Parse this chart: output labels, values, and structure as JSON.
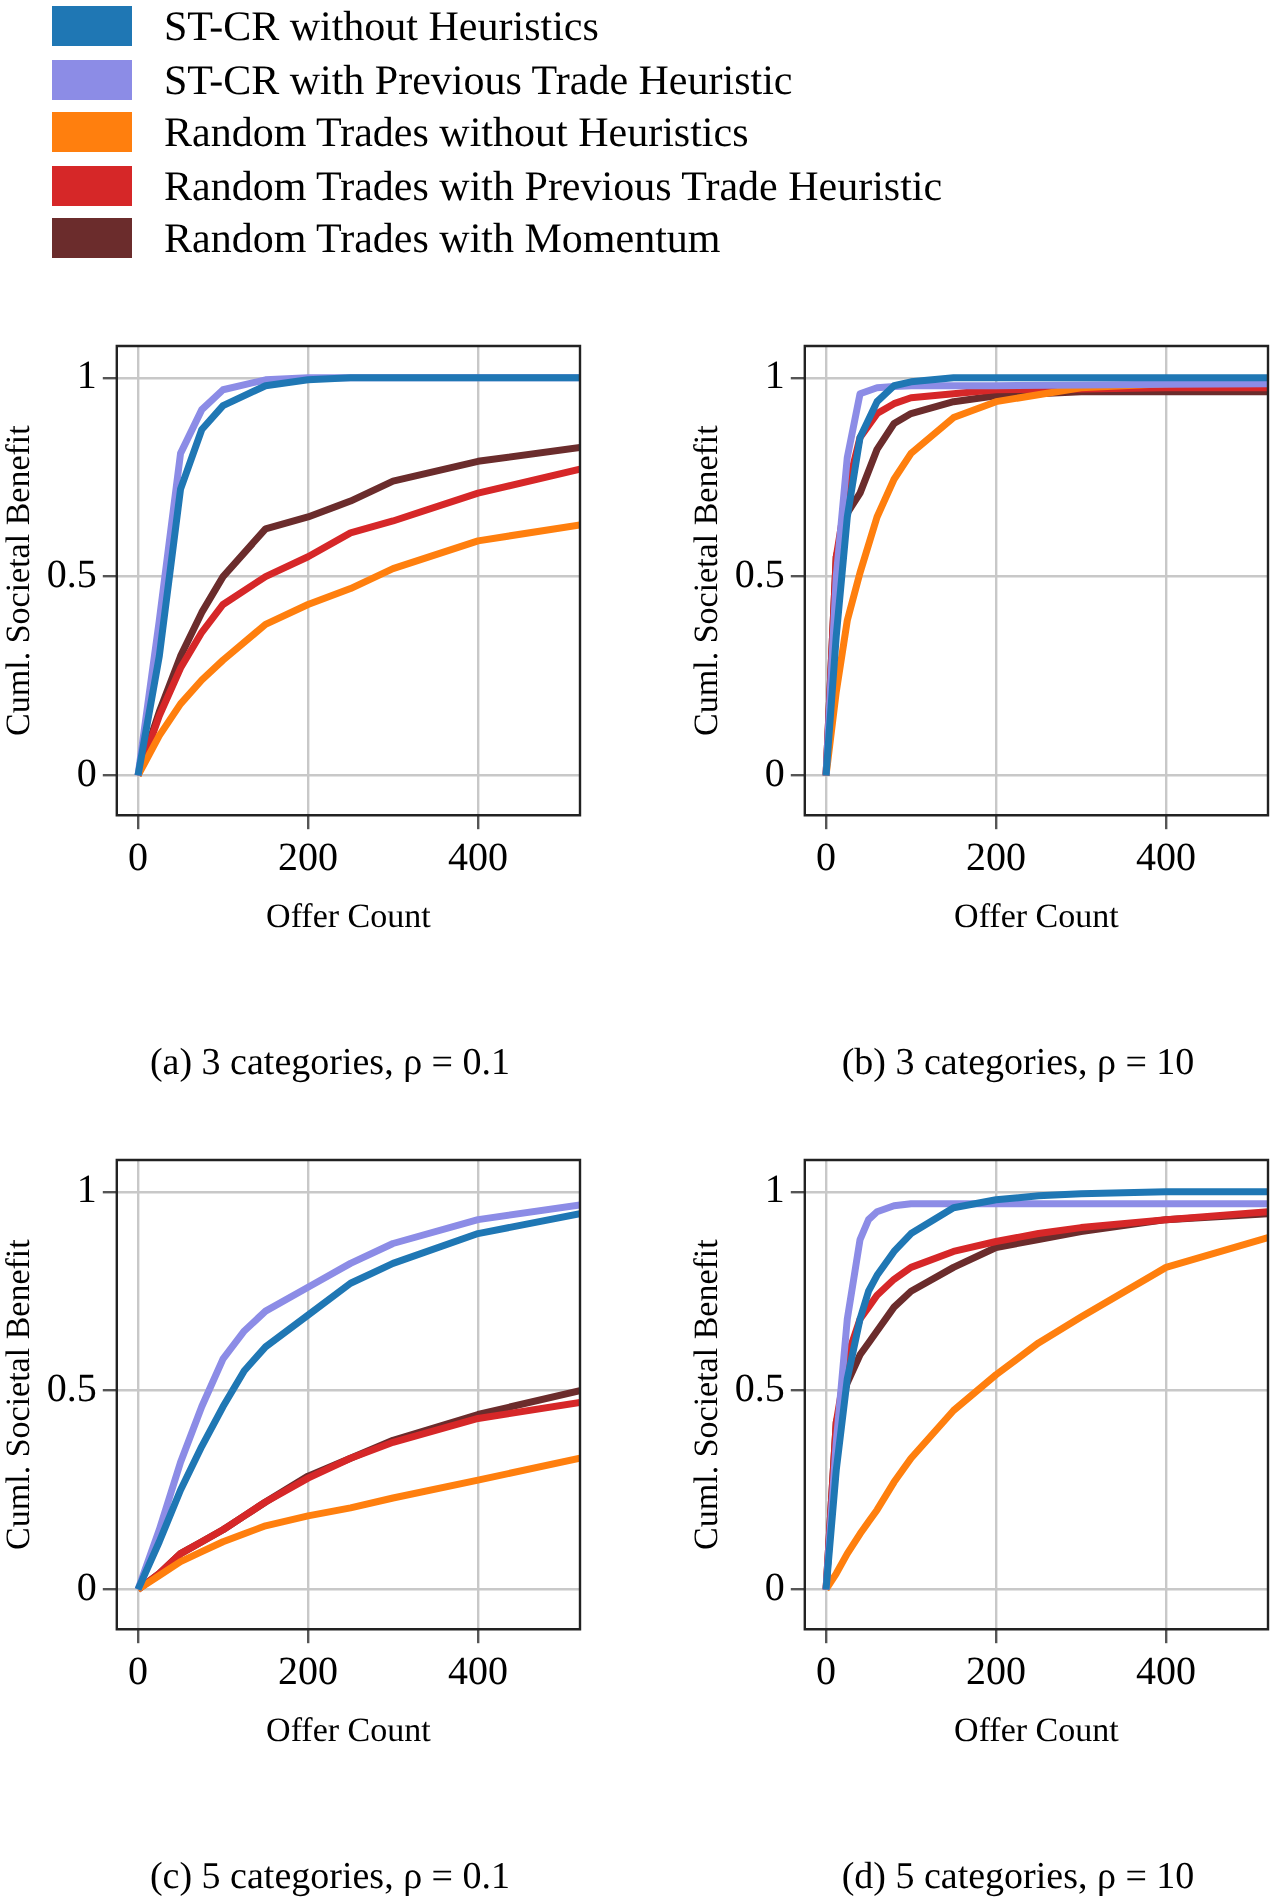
{
  "chart_data": [
    {
      "type": "line",
      "xlabel": "Offer Count",
      "ylabel": "Cuml. Societal Benefit",
      "annotations": [
        "(a) 3 categories, ρ = 0.1"
      ],
      "legend": "top",
      "grid": true,
      "xlim": [
        -25,
        520
      ],
      "ylim": [
        -0.1,
        1.08
      ],
      "xticks": [
        0,
        200,
        400
      ],
      "yticks": [
        0,
        0.5,
        1
      ],
      "x": [
        0,
        25,
        50,
        75,
        100,
        150,
        200,
        250,
        300,
        400,
        520
      ],
      "series": [
        {
          "name": "ST-CR without Heuristics",
          "color": "#1f77b4",
          "values": [
            0,
            0.3,
            0.72,
            0.87,
            0.93,
            0.98,
            0.995,
            1,
            1,
            1,
            1
          ]
        },
        {
          "name": "ST-CR with Previous Trade Heuristic",
          "color": "#8c8ce6",
          "values": [
            0,
            0.39,
            0.81,
            0.92,
            0.97,
            0.995,
            1,
            1,
            1,
            1,
            1
          ]
        },
        {
          "name": "Random Trades without Heuristics",
          "color": "#ff7f0e",
          "values": [
            0,
            0.1,
            0.18,
            0.24,
            0.29,
            0.38,
            0.43,
            0.47,
            0.52,
            0.59,
            0.63
          ]
        },
        {
          "name": "Random Trades with Previous Trade Heuristic",
          "color": "#d62728",
          "values": [
            0,
            0.15,
            0.27,
            0.36,
            0.43,
            0.5,
            0.55,
            0.61,
            0.64,
            0.71,
            0.77
          ]
        },
        {
          "name": "Random Trades with Momentum",
          "color": "#6b2c2c",
          "values": [
            0,
            0.16,
            0.3,
            0.41,
            0.5,
            0.62,
            0.65,
            0.69,
            0.74,
            0.79,
            0.825
          ]
        }
      ]
    },
    {
      "type": "line",
      "xlabel": "Offer Count",
      "ylabel": "Cuml. Societal Benefit",
      "annotations": [
        "(b) 3 categories, ρ = 10"
      ],
      "grid": true,
      "xlim": [
        -25,
        520
      ],
      "ylim": [
        -0.1,
        1.08
      ],
      "xticks": [
        0,
        200,
        400
      ],
      "yticks": [
        0,
        0.5,
        1
      ],
      "x": [
        0,
        12,
        25,
        40,
        60,
        80,
        100,
        150,
        200,
        300,
        400,
        520
      ],
      "series": [
        {
          "color": "#1f77b4",
          "values": [
            0,
            0.35,
            0.65,
            0.85,
            0.94,
            0.98,
            0.99,
            1,
            1,
            1,
            1,
            1
          ]
        },
        {
          "color": "#8c8ce6",
          "values": [
            0,
            0.5,
            0.8,
            0.96,
            0.975,
            0.978,
            0.98,
            0.98,
            0.98,
            0.982,
            0.984,
            0.985
          ]
        },
        {
          "color": "#ff7f0e",
          "values": [
            0,
            0.21,
            0.39,
            0.51,
            0.65,
            0.745,
            0.81,
            0.9,
            0.94,
            0.975,
            0.985,
            0.99
          ]
        },
        {
          "color": "#d62728",
          "values": [
            0,
            0.55,
            0.72,
            0.85,
            0.91,
            0.935,
            0.95,
            0.96,
            0.97,
            0.972,
            0.975,
            0.975
          ]
        },
        {
          "color": "#6b2c2c",
          "values": [
            0,
            0.55,
            0.66,
            0.71,
            0.82,
            0.885,
            0.91,
            0.94,
            0.955,
            0.965,
            0.965,
            0.965
          ]
        }
      ]
    },
    {
      "type": "line",
      "xlabel": "Offer Count",
      "ylabel": "Cuml. Societal Benefit",
      "annotations": [
        "(c) 5 categories, ρ = 0.1"
      ],
      "grid": true,
      "xlim": [
        -25,
        520
      ],
      "ylim": [
        -0.1,
        1.08
      ],
      "xticks": [
        0,
        200,
        400
      ],
      "yticks": [
        0,
        0.5,
        1
      ],
      "x": [
        0,
        25,
        50,
        75,
        100,
        125,
        150,
        200,
        250,
        300,
        400,
        520
      ],
      "series": [
        {
          "color": "#1f77b4",
          "values": [
            0,
            0.12,
            0.25,
            0.36,
            0.46,
            0.55,
            0.61,
            0.69,
            0.77,
            0.82,
            0.895,
            0.945
          ]
        },
        {
          "color": "#8c8ce6",
          "values": [
            0,
            0.15,
            0.32,
            0.46,
            0.58,
            0.65,
            0.7,
            0.76,
            0.82,
            0.87,
            0.93,
            0.967
          ]
        },
        {
          "color": "#ff7f0e",
          "values": [
            0,
            0.035,
            0.07,
            0.095,
            0.12,
            0.14,
            0.16,
            0.185,
            0.205,
            0.23,
            0.275,
            0.33
          ]
        },
        {
          "color": "#d62728",
          "values": [
            0,
            0.04,
            0.09,
            0.12,
            0.15,
            0.185,
            0.22,
            0.28,
            0.33,
            0.37,
            0.43,
            0.47
          ]
        },
        {
          "color": "#6b2c2c",
          "values": [
            0,
            0.04,
            0.09,
            0.12,
            0.15,
            0.185,
            0.22,
            0.285,
            0.33,
            0.375,
            0.44,
            0.5
          ]
        }
      ]
    },
    {
      "type": "line",
      "xlabel": "Offer Count",
      "ylabel": "Cuml. Societal Benefit",
      "annotations": [
        "(d) 5 categories, ρ = 10"
      ],
      "grid": true,
      "xlim": [
        -25,
        520
      ],
      "ylim": [
        -0.1,
        1.08
      ],
      "xticks": [
        0,
        200,
        400
      ],
      "yticks": [
        0,
        0.5,
        1
      ],
      "x": [
        0,
        12,
        25,
        40,
        50,
        60,
        80,
        100,
        150,
        200,
        250,
        300,
        400,
        520
      ],
      "series": [
        {
          "color": "#1f77b4",
          "values": [
            0,
            0.3,
            0.53,
            0.68,
            0.75,
            0.79,
            0.85,
            0.895,
            0.96,
            0.98,
            0.99,
            0.995,
            1,
            1
          ]
        },
        {
          "color": "#8c8ce6",
          "values": [
            0,
            0.37,
            0.68,
            0.88,
            0.93,
            0.95,
            0.965,
            0.97,
            0.97,
            0.97,
            0.97,
            0.97,
            0.97,
            0.97
          ]
        },
        {
          "color": "#ff7f0e",
          "values": [
            0,
            0.04,
            0.09,
            0.14,
            0.17,
            0.2,
            0.27,
            0.33,
            0.45,
            0.54,
            0.62,
            0.685,
            0.81,
            0.885
          ]
        },
        {
          "color": "#d62728",
          "values": [
            0,
            0.42,
            0.585,
            0.68,
            0.71,
            0.74,
            0.78,
            0.81,
            0.85,
            0.875,
            0.895,
            0.91,
            0.93,
            0.95
          ]
        },
        {
          "color": "#6b2c2c",
          "values": [
            0,
            0.42,
            0.52,
            0.59,
            0.62,
            0.65,
            0.71,
            0.75,
            0.81,
            0.86,
            0.88,
            0.9,
            0.93,
            0.945
          ]
        }
      ]
    }
  ]
}
